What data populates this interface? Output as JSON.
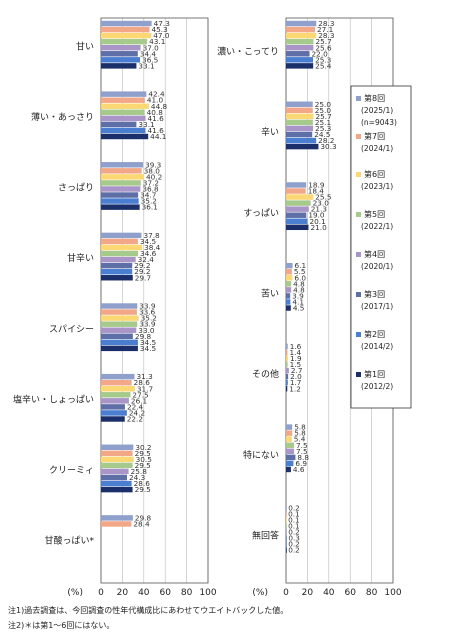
{
  "chart_data": [
    {
      "type": "bar",
      "orientation": "horizontal",
      "categories": [
        "甘い",
        "薄い・あっさり",
        "さっぱり",
        "甘辛い",
        "スパイシー",
        "塩辛い・しょっぱい",
        "クリーミィ",
        "甘酸っぱい*"
      ],
      "series": [
        {
          "name": "第8回",
          "values": [
            47.3,
            42.4,
            39.3,
            37.8,
            33.9,
            31.3,
            30.2,
            29.8
          ]
        },
        {
          "name": "第7回",
          "values": [
            45.3,
            41.0,
            38.0,
            34.5,
            33.6,
            28.6,
            29.5,
            28.4
          ]
        },
        {
          "name": "第6回",
          "values": [
            47.0,
            44.8,
            40.2,
            38.4,
            35.2,
            31.7,
            30.5,
            null
          ]
        },
        {
          "name": "第5回",
          "values": [
            43.1,
            40.8,
            37.2,
            34.6,
            33.9,
            27.5,
            29.5,
            null
          ]
        },
        {
          "name": "第4回",
          "values": [
            37.0,
            41.6,
            36.8,
            32.4,
            33.0,
            26.1,
            25.8,
            null
          ]
        },
        {
          "name": "第3回",
          "values": [
            34.4,
            33.1,
            34.7,
            29.2,
            29.8,
            22.4,
            24.3,
            null
          ]
        },
        {
          "name": "第2回",
          "values": [
            36.5,
            41.6,
            35.2,
            29.2,
            34.5,
            24.2,
            28.6,
            null
          ]
        },
        {
          "name": "第1回",
          "values": [
            33.1,
            44.1,
            36.1,
            29.7,
            34.5,
            22.2,
            29.5,
            null
          ]
        }
      ],
      "xlim": [
        0,
        100
      ],
      "xticks": [
        "0",
        "20",
        "40",
        "60",
        "80",
        "100"
      ],
      "xlabel": "(%)"
    },
    {
      "type": "bar",
      "orientation": "horizontal",
      "categories": [
        "濃い・こってり",
        "辛い",
        "すっぱい",
        "苦い",
        "その他",
        "特にない",
        "無回答"
      ],
      "series": [
        {
          "name": "第8回",
          "values": [
            28.3,
            25.0,
            18.9,
            6.1,
            1.6,
            5.8,
            0.2
          ]
        },
        {
          "name": "第7回",
          "values": [
            27.1,
            25.0,
            18.4,
            5.5,
            1.4,
            5.8,
            0.1
          ]
        },
        {
          "name": "第6回",
          "values": [
            28.3,
            25.7,
            25.5,
            6.0,
            1.9,
            5.4,
            0.1
          ]
        },
        {
          "name": "第5回",
          "values": [
            25.7,
            25.1,
            23.0,
            4.8,
            1.5,
            7.5,
            0.1
          ]
        },
        {
          "name": "第4回",
          "values": [
            25.6,
            25.3,
            21.3,
            4.8,
            2.7,
            7.5,
            0.2
          ]
        },
        {
          "name": "第3回",
          "values": [
            22.0,
            24.5,
            19.0,
            3.9,
            2.0,
            8.8,
            0.3
          ]
        },
        {
          "name": "第2回",
          "values": [
            25.3,
            28.2,
            20.1,
            4.1,
            1.7,
            6.9,
            0.2
          ]
        },
        {
          "name": "第1回",
          "values": [
            25.4,
            30.3,
            21.0,
            4.5,
            1.2,
            4.6,
            0.2
          ]
        }
      ],
      "xlim": [
        0,
        100
      ],
      "xticks": [
        "0",
        "20",
        "40",
        "60",
        "80",
        "100"
      ],
      "xlabel": "(%)"
    }
  ],
  "legend": [
    {
      "label": "第8回",
      "sub": "(2025/1)",
      "extra": "(n=9043)",
      "color": "#8fa0cc"
    },
    {
      "label": "第7回",
      "sub": "(2024/1)",
      "color": "#f2a888"
    },
    {
      "label": "第6回",
      "sub": "(2023/1)",
      "color": "#fbd873"
    },
    {
      "label": "第5回",
      "sub": "(2022/1)",
      "color": "#a6c98c"
    },
    {
      "label": "第4回",
      "sub": "(2020/1)",
      "color": "#a995c8"
    },
    {
      "label": "第3回",
      "sub": "(2017/1)",
      "color": "#5e6fa7"
    },
    {
      "label": "第2回",
      "sub": "(2014/2)",
      "color": "#4a7ed0"
    },
    {
      "label": "第1回",
      "sub": "(2012/2)",
      "color": "#1b2f6a"
    }
  ],
  "notes": {
    "note1": "注1)過去調査は、今回調査の性年代構成比にあわせてウエイトバックした値。",
    "note2": "注2)＊は第1～6回にはない。"
  }
}
